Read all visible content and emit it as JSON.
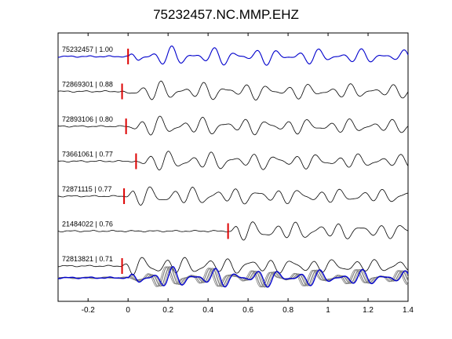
{
  "chart_data": {
    "type": "line",
    "title": "75232457.NC.MMP.EHZ",
    "xlabel": "",
    "ylabel": "",
    "xlim": [
      -0.35,
      1.4
    ],
    "x_ticks": [
      -0.2,
      0,
      0.2,
      0.4,
      0.6,
      0.8,
      1,
      1.2,
      1.4
    ],
    "x_tick_labels": [
      "-0.2",
      "0",
      "0.2",
      "0.4",
      "0.6",
      "0.8",
      "1",
      "1.2",
      "1.4"
    ],
    "grid": false,
    "traces": [
      {
        "label": "75232457 | 1.00",
        "pick": 0.0,
        "color": "#0000cc",
        "seed": 1.0
      },
      {
        "label": "72869301 | 0.88",
        "pick": -0.03,
        "color": "#000000",
        "seed": 2.3
      },
      {
        "label": "72893106 | 0.80",
        "pick": -0.01,
        "color": "#000000",
        "seed": 3.7
      },
      {
        "label": "73661061 | 0.77",
        "pick": 0.04,
        "color": "#000000",
        "seed": 4.1
      },
      {
        "label": "72871115 | 0.77",
        "pick": -0.02,
        "color": "#000000",
        "seed": 5.9
      },
      {
        "label": "21484022 | 0.76",
        "pick": 0.5,
        "color": "#000000",
        "seed": 6.2
      },
      {
        "label": "72813821 | 0.71",
        "pick": -0.03,
        "color": "#000000",
        "seed": 7.5
      }
    ],
    "stack": {
      "master_color": "#0000cc",
      "others_color": "#808080"
    },
    "pick_color": "#dd0000"
  }
}
